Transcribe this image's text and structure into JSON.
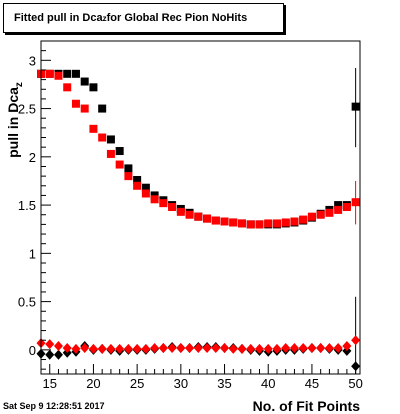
{
  "title": {
    "prefix": "Fitted pull in Dca",
    "subscript": "z",
    "suffix": " for Global Rec Pion NoHits"
  },
  "datestamp": "Sat Sep  9 12:28:51 2017",
  "chart_data": {
    "type": "scatter",
    "title": "Fitted pull in Dca_z for Global Rec Pion NoHits",
    "xlabel": "No. of Fit Points",
    "ylabel": "pull in Dca_z",
    "xlim": [
      14,
      50.5
    ],
    "ylim": [
      -0.25,
      3.2
    ],
    "xticks": [
      15,
      20,
      25,
      30,
      35,
      40,
      45,
      50
    ],
    "yticks": [
      0,
      0.5,
      1,
      1.5,
      2,
      2.5,
      3
    ],
    "grid": false,
    "legend": "none",
    "series": [
      {
        "marker": "square",
        "color": "#000000",
        "x": [
          14,
          15,
          16,
          17,
          18,
          19,
          20,
          21,
          22,
          23,
          24,
          25,
          26,
          27,
          28,
          29,
          30,
          31,
          32,
          33,
          34,
          35,
          36,
          37,
          38,
          39,
          40,
          41,
          42,
          43,
          44,
          45,
          46,
          47,
          48,
          49,
          50
        ],
        "y": [
          2.86,
          2.86,
          2.86,
          2.86,
          2.86,
          2.78,
          2.72,
          2.5,
          2.18,
          2.06,
          1.88,
          1.76,
          1.68,
          1.6,
          1.55,
          1.5,
          1.46,
          1.42,
          1.38,
          1.36,
          1.34,
          1.33,
          1.32,
          1.31,
          1.3,
          1.3,
          1.3,
          1.3,
          1.31,
          1.32,
          1.34,
          1.37,
          1.41,
          1.45,
          1.5,
          1.5,
          2.52
        ]
      },
      {
        "marker": "square",
        "color": "#ff0000",
        "x": [
          14,
          15,
          16,
          17,
          18,
          19,
          20,
          21,
          22,
          23,
          24,
          25,
          26,
          27,
          28,
          29,
          30,
          31,
          32,
          33,
          34,
          35,
          36,
          37,
          38,
          39,
          40,
          41,
          42,
          43,
          44,
          45,
          46,
          47,
          48,
          49,
          50
        ],
        "y": [
          2.86,
          2.86,
          2.84,
          2.72,
          2.55,
          2.5,
          2.29,
          2.2,
          2.03,
          1.92,
          1.8,
          1.7,
          1.62,
          1.56,
          1.52,
          1.48,
          1.43,
          1.4,
          1.38,
          1.36,
          1.34,
          1.33,
          1.32,
          1.31,
          1.3,
          1.3,
          1.31,
          1.31,
          1.32,
          1.33,
          1.35,
          1.38,
          1.4,
          1.42,
          1.45,
          1.48,
          1.53
        ]
      },
      {
        "marker": "diamond",
        "color": "#000000",
        "x": [
          14,
          15,
          16,
          17,
          18,
          19,
          20,
          21,
          22,
          23,
          24,
          25,
          26,
          27,
          28,
          29,
          30,
          31,
          32,
          33,
          34,
          35,
          36,
          37,
          38,
          39,
          40,
          41,
          42,
          43,
          44,
          45,
          46,
          47,
          48,
          49,
          50
        ],
        "y": [
          -0.04,
          -0.05,
          -0.05,
          -0.03,
          -0.02,
          0.04,
          0.0,
          0.01,
          0.0,
          -0.01,
          0.0,
          0.0,
          0.0,
          0.01,
          0.02,
          0.03,
          0.02,
          0.02,
          0.03,
          0.03,
          0.03,
          0.02,
          0.02,
          0.01,
          0.0,
          -0.01,
          -0.02,
          -0.01,
          0.0,
          0.0,
          0.01,
          0.02,
          0.02,
          0.01,
          0.0,
          -0.01,
          -0.17
        ]
      },
      {
        "marker": "diamond",
        "color": "#ff0000",
        "x": [
          14,
          15,
          16,
          17,
          18,
          19,
          20,
          21,
          22,
          23,
          24,
          25,
          26,
          27,
          28,
          29,
          30,
          31,
          32,
          33,
          34,
          35,
          36,
          37,
          38,
          39,
          40,
          41,
          42,
          43,
          44,
          45,
          46,
          47,
          48,
          49,
          50
        ],
        "y": [
          0.07,
          0.06,
          0.04,
          0.02,
          0.01,
          0.02,
          0.01,
          0.01,
          0.01,
          0.01,
          0.01,
          0.01,
          0.01,
          0.02,
          0.02,
          0.02,
          0.02,
          0.02,
          0.02,
          0.02,
          0.02,
          0.02,
          0.01,
          0.01,
          0.01,
          0.01,
          0.01,
          0.01,
          0.02,
          0.02,
          0.02,
          0.02,
          0.02,
          0.02,
          0.02,
          0.04,
          0.1
        ]
      }
    ]
  }
}
